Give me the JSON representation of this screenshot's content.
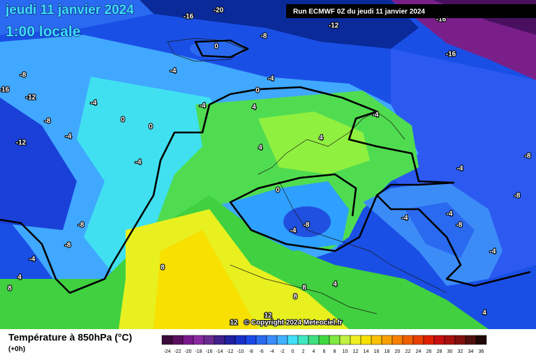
{
  "header": {
    "date": "jeudi 11 janvier 2024",
    "time": "1:00 locale",
    "run": "Run ECMWF 0Z du jeudi 11 janvier 2024"
  },
  "footer": {
    "title": "Température à 850hPa (°C)",
    "step": "(+0h)",
    "copyright": "© Copyright 2024 Meteociel.fr"
  },
  "contour_labels": [
    -20,
    -16,
    -16,
    -12,
    -8,
    -16,
    0,
    -4,
    -4,
    -8,
    -16,
    -12,
    -4,
    -8,
    -4,
    -12,
    0,
    0,
    -4,
    4,
    4,
    0,
    4,
    -4,
    -4,
    -4,
    -8,
    -8,
    0,
    -8,
    -4,
    -8,
    -8,
    -4,
    4,
    8,
    8,
    4,
    8,
    8,
    12,
    12,
    -4,
    -4,
    -4,
    -8,
    4
  ],
  "colorbar": {
    "ticks": [
      -24,
      -22,
      -20,
      -18,
      -16,
      -14,
      -12,
      -10,
      -8,
      -6,
      -4,
      -2,
      0,
      2,
      4,
      6,
      8,
      10,
      12,
      14,
      16,
      18,
      20,
      22,
      24,
      26,
      28,
      30,
      32,
      34,
      36
    ],
    "colors": [
      "#3a0a3a",
      "#5a1060",
      "#7a1a8a",
      "#8a2aa0",
      "#6a2a90",
      "#40208a",
      "#2020a0",
      "#1a30c8",
      "#1a48e8",
      "#2a6af0",
      "#3a8cf8",
      "#40b0ff",
      "#40e0f8",
      "#40e8c0",
      "#40e080",
      "#40d840",
      "#80e840",
      "#c0f040",
      "#f0f020",
      "#f8e000",
      "#f8c000",
      "#f8a000",
      "#f88000",
      "#f06000",
      "#e84000",
      "#e02000",
      "#c81010",
      "#a81010",
      "#801010",
      "#501010",
      "#200808"
    ]
  }
}
